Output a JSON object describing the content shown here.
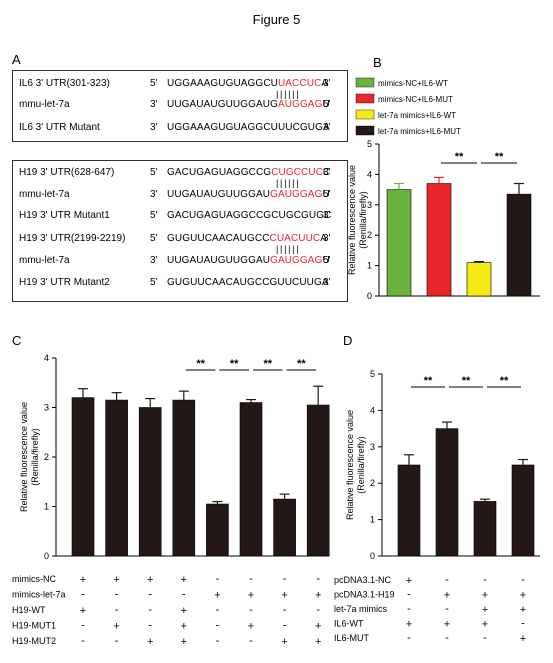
{
  "figure_title": "Figure 5",
  "panels": {
    "A": "A",
    "B": "B",
    "C": "C",
    "D": "D"
  },
  "panelA": {
    "box1": [
      {
        "label": "IL6 3' UTR(301-323)",
        "p": "5'",
        "seq_pre": "UGGAAAGUGUAGGCU",
        "seq_red": "UACCUC",
        "seq_post": "A",
        "p2": "3'"
      },
      {
        "label": "mmu-let-7a",
        "p": "3'",
        "seq_pre": "UUGAUAUGUUGGAUG",
        "seq_red": "AUGGAG",
        "seq_post": "U",
        "p2": "5'"
      },
      {
        "label": "IL6 3' UTR Mutant",
        "p": "3'",
        "seq_pre": "UGGAAAGUGUAGGCUUUCGUGA",
        "seq_red": "",
        "seq_post": "",
        "p2": "3'"
      }
    ],
    "box2": [
      {
        "label": "H19 3' UTR(628-647)",
        "p": "5'",
        "seq_pre": "GACUGAGUAGGCCG",
        "seq_red": "CUGCCUC",
        "seq_post": "C",
        "p2": "3'"
      },
      {
        "label": "mmu-let-7a",
        "p": "3'",
        "seq_pre": "UUGAUAUGUUGGAU",
        "seq_red": "GAUGGAG",
        "seq_post": "U",
        "p2": "5'"
      },
      {
        "label": "H19 3' UTR Mutant1",
        "p": "5'",
        "seq_pre": "GACUGAGUAGGCCGCUGCGUGC",
        "seq_red": "",
        "seq_post": "",
        "p2": "3'"
      },
      {
        "label": "H19 3' UTR(2199-2219)",
        "p": "5'",
        "seq_pre": "GUGUUCAACAUGCC",
        "seq_red": "CUACUUC",
        "seq_post": "A",
        "p2": "3'"
      },
      {
        "label": "mmu-let-7a",
        "p": "3'",
        "seq_pre": "UUGAUAUGUUGGAU",
        "seq_red": "GAUGGAG",
        "seq_post": "U",
        "p2": "5'"
      },
      {
        "label": "H19 3' UTR Mutant2",
        "p": "5'",
        "seq_pre": "GUGUUCAACAUGCCGUUCUUGA",
        "seq_red": "",
        "seq_post": "",
        "p2": "3'"
      }
    ]
  },
  "chart_data": [
    {
      "panel": "B",
      "type": "bar",
      "ylabel": "Relative fluorescence value (Renilla/firefly)",
      "ylim": [
        0,
        5
      ],
      "yticks": [
        0,
        1,
        2,
        3,
        4,
        5
      ],
      "categories": [
        "mimics-NC+IL6-WT",
        "mimics-NC+IL6-MUT",
        "let-7a mimics+IL6-WT",
        "let-7a mimics+IL6-MUT"
      ],
      "values": [
        3.5,
        3.7,
        1.1,
        3.35
      ],
      "errors": [
        0.2,
        0.2,
        0.03,
        0.35
      ],
      "colors": [
        "#6ab23e",
        "#e8262b",
        "#f5ea14",
        "#231815"
      ],
      "legend": [
        "mimics-NC+IL6-WT",
        "mimics-NC+IL6-MUT",
        "let-7a mimics+IL6-WT",
        "let-7a mimics+IL6-MUT"
      ],
      "significance": [
        {
          "label": "**",
          "from": 1,
          "to": 2
        },
        {
          "label": "**",
          "from": 2,
          "to": 3
        }
      ]
    },
    {
      "panel": "C",
      "type": "bar",
      "ylabel": "Relative fluorescence value (Renilla/firefly)",
      "ylim": [
        0,
        4
      ],
      "yticks": [
        0,
        1,
        2,
        3,
        4
      ],
      "values": [
        3.2,
        3.15,
        3.0,
        3.15,
        1.05,
        3.1,
        1.15,
        3.05
      ],
      "errors": [
        0.18,
        0.15,
        0.18,
        0.18,
        0.05,
        0.06,
        0.1,
        0.38
      ],
      "color": "#231815",
      "significance": [
        {
          "label": "**",
          "from": 3,
          "to": 4
        },
        {
          "label": "**",
          "from": 4,
          "to": 5
        },
        {
          "label": "**",
          "from": 5,
          "to": 6
        },
        {
          "label": "**",
          "from": 6,
          "to": 7
        }
      ],
      "conditions": [
        {
          "name": "mimics-NC",
          "signs": [
            "+",
            "+",
            "+",
            "+",
            "-",
            "-",
            "-",
            "-"
          ]
        },
        {
          "name": "mimics-let-7a",
          "signs": [
            "-",
            "-",
            "-",
            "-",
            "+",
            "+",
            "+",
            "+"
          ]
        },
        {
          "name": "H19-WT",
          "signs": [
            "+",
            "-",
            "-",
            "+",
            "-",
            "-",
            "-",
            "-"
          ]
        },
        {
          "name": "H19-MUT1",
          "signs": [
            "-",
            "+",
            "-",
            "+",
            "-",
            "+",
            "-",
            "+"
          ]
        },
        {
          "name": "H19-MUT2",
          "signs": [
            "-",
            "-",
            "+",
            "+",
            "-",
            "-",
            "+",
            "+"
          ]
        }
      ]
    },
    {
      "panel": "D",
      "type": "bar",
      "ylabel": "Relative fluorescence value (Renilla/firefly)",
      "ylim": [
        0,
        5
      ],
      "yticks": [
        0,
        1,
        2,
        3,
        4,
        5
      ],
      "values": [
        2.5,
        3.5,
        1.5,
        2.5
      ],
      "errors": [
        0.28,
        0.18,
        0.06,
        0.15
      ],
      "color": "#231815",
      "significance": [
        {
          "label": "**",
          "from": 0,
          "to": 1
        },
        {
          "label": "**",
          "from": 1,
          "to": 2
        },
        {
          "label": "**",
          "from": 2,
          "to": 3
        }
      ],
      "conditions": [
        {
          "name": "pcDNA3.1-NC",
          "signs": [
            "+",
            "-",
            "-",
            "-"
          ]
        },
        {
          "name": "pcDNA3.1-H19",
          "signs": [
            "-",
            "+",
            "+",
            "+"
          ]
        },
        {
          "name": "let-7a mimics",
          "signs": [
            "-",
            "-",
            "+",
            "+"
          ]
        },
        {
          "name": "IL6-WT",
          "signs": [
            "+",
            "+",
            "+",
            "-"
          ]
        },
        {
          "name": "IL6-MUT",
          "signs": [
            "-",
            "-",
            "-",
            "+"
          ]
        }
      ]
    }
  ]
}
